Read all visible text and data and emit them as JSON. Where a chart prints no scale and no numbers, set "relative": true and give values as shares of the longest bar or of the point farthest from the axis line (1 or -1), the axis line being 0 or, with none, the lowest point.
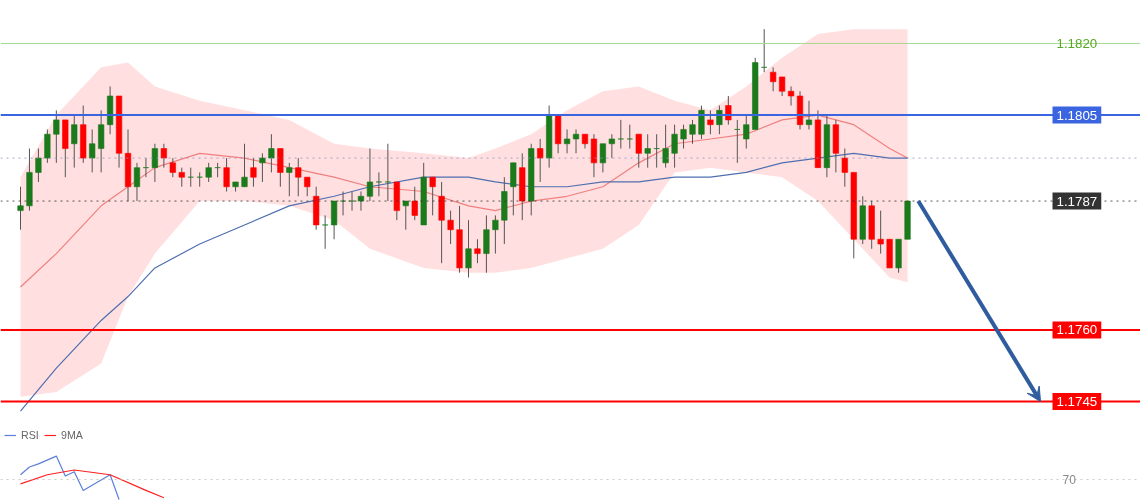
{
  "chart_data": [
    {
      "type": "candlestick",
      "tick_labels": "y",
      "grid": false,
      "yticks": [
        1.1745,
        {
          "value": 1.176,
          "label": "1.1760"
        },
        1.1787,
        1.1805,
        {
          "value": 1.182,
          "label": "1.1820"
        }
      ],
      "categories": [
        null,
        null,
        null,
        null,
        null,
        null,
        null,
        null,
        null,
        null,
        null,
        null,
        null,
        null,
        null,
        null,
        null,
        null,
        null,
        null,
        null,
        null,
        null,
        null,
        null,
        null,
        null,
        null,
        null,
        null,
        null,
        null,
        null,
        null,
        null,
        null,
        null,
        null,
        null,
        null,
        null,
        null,
        null,
        null,
        null,
        null,
        null,
        null,
        null,
        null,
        null,
        null,
        null,
        null,
        null,
        null,
        null,
        null,
        null,
        null,
        null,
        null,
        null,
        null,
        null,
        null,
        null,
        null,
        null,
        null,
        null,
        null,
        null,
        null,
        null,
        null,
        null,
        null,
        null,
        null,
        null,
        null,
        null,
        null,
        null,
        null,
        null,
        null,
        null,
        null,
        null,
        null,
        null,
        null,
        null,
        null,
        null,
        null,
        null,
        null
      ],
      "ylim": [
        1.174,
        1.1829
      ],
      "ohlc": [
        [
          1.1785,
          1.179,
          1.1781,
          1.1786
        ],
        [
          1.1786,
          1.1798,
          1.1785,
          1.1793
        ],
        [
          1.1793,
          1.1798,
          1.1791,
          1.1796
        ],
        [
          1.1796,
          1.1802,
          1.1795,
          1.1801
        ],
        [
          1.1801,
          1.1806,
          1.1795,
          1.1804
        ],
        [
          1.1804,
          1.1804,
          1.1792,
          1.1798
        ],
        [
          1.1799,
          1.1805,
          1.1794,
          1.1803
        ],
        [
          1.1803,
          1.1807,
          1.1795,
          1.1796
        ],
        [
          1.1796,
          1.1802,
          1.1793,
          1.1799
        ],
        [
          1.1798,
          1.1806,
          1.1793,
          1.1803
        ],
        [
          1.1803,
          1.1811,
          1.1801,
          1.1809
        ],
        [
          1.1809,
          1.1809,
          1.1794,
          1.1797
        ],
        [
          1.1797,
          1.1802,
          1.1787,
          1.179
        ],
        [
          1.179,
          1.1795,
          1.1787,
          1.1794
        ],
        [
          1.1794,
          1.1796,
          1.1792,
          1.1794
        ],
        [
          1.1794,
          1.1799,
          1.1791,
          1.1798
        ],
        [
          1.1798,
          1.1799,
          1.1794,
          1.1796
        ],
        [
          1.1795,
          1.1796,
          1.1792,
          1.1793
        ],
        [
          1.1793,
          1.1794,
          1.179,
          1.1792
        ],
        [
          1.1792,
          1.1794,
          1.179,
          1.1792
        ],
        [
          1.1792,
          1.1793,
          1.179,
          1.1792
        ],
        [
          1.1792,
          1.1795,
          1.1791,
          1.1794
        ],
        [
          1.1794,
          1.1795,
          1.1792,
          1.1794
        ],
        [
          1.1794,
          1.1796,
          1.1789,
          1.179
        ],
        [
          1.179,
          1.1791,
          1.1789,
          1.1791
        ],
        [
          1.179,
          1.1799,
          1.179,
          1.1792
        ],
        [
          1.1794,
          1.1796,
          1.179,
          1.1792
        ],
        [
          1.1795,
          1.1797,
          1.1791,
          1.1796
        ],
        [
          1.1796,
          1.1801,
          1.1793,
          1.1798
        ],
        [
          1.1798,
          1.1798,
          1.179,
          1.1793
        ],
        [
          1.1793,
          1.1795,
          1.1788,
          1.1794
        ],
        [
          1.1794,
          1.1796,
          1.1788,
          1.1792
        ],
        [
          1.1792,
          1.1792,
          1.1788,
          1.179
        ],
        [
          1.1788,
          1.179,
          1.1781,
          1.1782
        ],
        [
          1.1782,
          1.1784,
          1.1777,
          1.1782
        ],
        [
          1.1782,
          1.1787,
          1.1779,
          1.1787
        ],
        [
          1.1787,
          1.1789,
          1.1784,
          1.1787
        ],
        [
          1.1787,
          1.1789,
          1.1785,
          1.1787
        ],
        [
          1.1787,
          1.1789,
          1.1785,
          1.1788
        ],
        [
          1.1788,
          1.1798,
          1.1787,
          1.1791
        ],
        [
          1.1791,
          1.1793,
          1.1788,
          1.1791
        ],
        [
          1.1791,
          1.1799,
          1.1787,
          1.1791
        ],
        [
          1.1791,
          1.1791,
          1.1783,
          1.1785
        ],
        [
          1.1786,
          1.1787,
          1.1781,
          1.1787
        ],
        [
          1.1787,
          1.179,
          1.1783,
          1.1784
        ],
        [
          1.1782,
          1.1795,
          1.1782,
          1.1792
        ],
        [
          1.1792,
          1.1792,
          1.1784,
          1.179
        ],
        [
          1.1788,
          1.1791,
          1.1774,
          1.1783
        ],
        [
          1.1783,
          1.1785,
          1.1778,
          1.1781
        ],
        [
          1.1781,
          1.1786,
          1.1772,
          1.1773
        ],
        [
          1.1773,
          1.1783,
          1.1771,
          1.1777
        ],
        [
          1.1777,
          1.1779,
          1.1774,
          1.1776
        ],
        [
          1.1776,
          1.1784,
          1.1772,
          1.1781
        ],
        [
          1.1781,
          1.1784,
          1.1776,
          1.1783
        ],
        [
          1.1783,
          1.1792,
          1.1778,
          1.1789
        ],
        [
          1.179,
          1.1795,
          1.1784,
          1.1795
        ],
        [
          1.1794,
          1.1797,
          1.1783,
          1.1787
        ],
        [
          1.1787,
          1.1799,
          1.1784,
          1.1798
        ],
        [
          1.1798,
          1.18,
          1.1791,
          1.1796
        ],
        [
          1.1796,
          1.1807,
          1.1794,
          1.1805
        ],
        [
          1.1805,
          1.1805,
          1.1797,
          1.1799
        ],
        [
          1.1799,
          1.1802,
          1.1797,
          1.18
        ],
        [
          1.18,
          1.1802,
          1.1797,
          1.1801
        ],
        [
          1.1801,
          1.1801,
          1.1798,
          1.1799
        ],
        [
          1.18,
          1.1801,
          1.1792,
          1.1795
        ],
        [
          1.1795,
          1.1799,
          1.1793,
          1.1799
        ],
        [
          1.1799,
          1.1801,
          1.1796,
          1.18
        ],
        [
          1.18,
          1.1804,
          1.1798,
          1.18
        ],
        [
          1.18,
          1.1803,
          1.1798,
          1.18
        ],
        [
          1.1801,
          1.1801,
          1.1794,
          1.1797
        ],
        [
          1.1797,
          1.1801,
          1.1794,
          1.1798
        ],
        [
          1.1798,
          1.1801,
          1.1794,
          1.1798
        ],
        [
          1.1795,
          1.1803,
          1.1794,
          1.1798
        ],
        [
          1.1797,
          1.1803,
          1.1794,
          1.1801
        ],
        [
          1.18,
          1.1803,
          1.1798,
          1.1802
        ],
        [
          1.1801,
          1.1804,
          1.1799,
          1.1803
        ],
        [
          1.1801,
          1.1807,
          1.18,
          1.1806
        ],
        [
          1.1804,
          1.1806,
          1.1801,
          1.1803
        ],
        [
          1.1803,
          1.1807,
          1.1801,
          1.1806
        ],
        [
          1.1807,
          1.1809,
          1.1803,
          1.1804
        ],
        [
          1.1802,
          1.1804,
          1.1795,
          1.1802
        ],
        [
          1.18,
          1.1805,
          1.1798,
          1.1803
        ],
        [
          1.1802,
          1.1817,
          1.1802,
          1.1816
        ],
        [
          1.1815,
          1.1823,
          1.1814,
          1.1815
        ],
        [
          1.1814,
          1.1815,
          1.181,
          1.1812
        ],
        [
          1.1813,
          1.1813,
          1.1809,
          1.181
        ],
        [
          1.181,
          1.1811,
          1.1807,
          1.1809
        ],
        [
          1.1809,
          1.181,
          1.1802,
          1.1803
        ],
        [
          1.1803,
          1.1808,
          1.1802,
          1.1804
        ],
        [
          1.1804,
          1.1806,
          1.1794,
          1.1794
        ],
        [
          1.1794,
          1.1805,
          1.1792,
          1.1803
        ],
        [
          1.1803,
          1.1804,
          1.1793,
          1.1797
        ],
        [
          1.1796,
          1.1798,
          1.179,
          1.1793
        ],
        [
          1.1793,
          1.1793,
          1.1775,
          1.1779
        ],
        [
          1.1779,
          1.1788,
          1.1778,
          1.1786
        ],
        [
          1.1786,
          1.1787,
          1.1777,
          1.1779
        ],
        [
          1.1779,
          1.1785,
          1.1776,
          1.1778
        ],
        [
          1.1779,
          1.1779,
          1.1773,
          1.1773
        ],
        [
          1.1773,
          1.1779,
          1.1772,
          1.1779
        ],
        [
          1.1779,
          1.1787,
          1.1779,
          1.1787
        ]
      ],
      "colors": [
        "#1b7a1b",
        "#1b7a1b",
        "#1b7a1b",
        "#1b7a1b",
        "#1b7a1b",
        "#ff0000",
        "#1b7a1b",
        "#ff0000",
        "#1b7a1b",
        "#1b7a1b",
        "#1b7a1b",
        "#ff0000",
        "#ff0000",
        "#1b7a1b",
        "#1b7a1b",
        "#1b7a1b",
        "#ff0000",
        "#ff0000",
        "#ff0000",
        "#1b7a1b",
        "#1b7a1b",
        "#1b7a1b",
        "#1b7a1b",
        "#ff0000",
        "#1b7a1b",
        "#1b7a1b",
        "#ff0000",
        "#1b7a1b",
        "#1b7a1b",
        "#ff0000",
        "#1b7a1b",
        "#ff0000",
        "#ff0000",
        "#ff0000",
        "#1b7a1b",
        "#1b7a1b",
        "#1b7a1b",
        "#1b7a1b",
        "#1b7a1b",
        "#1b7a1b",
        "#1b7a1b",
        "#1b7a1b",
        "#ff0000",
        "#1b7a1b",
        "#ff0000",
        "#1b7a1b",
        "#ff0000",
        "#ff0000",
        "#ff0000",
        "#ff0000",
        "#1b7a1b",
        "#ff0000",
        "#1b7a1b",
        "#1b7a1b",
        "#1b7a1b",
        "#1b7a1b",
        "#ff0000",
        "#1b7a1b",
        "#ff0000",
        "#1b7a1b",
        "#ff0000",
        "#1b7a1b",
        "#1b7a1b",
        "#ff0000",
        "#ff0000",
        "#1b7a1b",
        "#1b7a1b",
        "#1b7a1b",
        "#1b7a1b",
        "#ff0000",
        "#1b7a1b",
        "#1b7a1b",
        "#1b7a1b",
        "#1b7a1b",
        "#1b7a1b",
        "#1b7a1b",
        "#1b7a1b",
        "#ff0000",
        "#1b7a1b",
        "#ff0000",
        "#1b7a1b",
        "#1b7a1b",
        "#1b7a1b",
        "#1b7a1b",
        "#ff0000",
        "#ff0000",
        "#ff0000",
        "#ff0000",
        "#1b7a1b",
        "#ff0000",
        "#1b7a1b",
        "#ff0000",
        "#ff0000",
        "#ff0000",
        "#1b7a1b",
        "#ff0000",
        "#ff0000",
        "#ff0000",
        "#1b7a1b",
        "#1b7a1b"
      ],
      "series": [
        {
          "type": "line",
          "color": "#f08080",
          "values": [
            1.1769,
            null,
            null,
            null,
            1.1776,
            null,
            null,
            null,
            null,
            1.1786,
            null,
            null,
            1.179,
            null,
            null,
            1.1794,
            null,
            null,
            null,
            null,
            1.1797,
            null,
            null,
            null,
            null,
            1.1796,
            null,
            null,
            null,
            null,
            1.1794,
            null,
            null,
            null,
            null,
            1.1792,
            null,
            null,
            null,
            1.179,
            null,
            null,
            null,
            null,
            null,
            1.1789,
            null,
            null,
            null,
            null,
            1.1786,
            null,
            null,
            1.1785,
            null,
            null,
            null,
            1.1787,
            null,
            null,
            null,
            1.1788,
            null,
            null,
            null,
            1.179,
            null,
            null,
            null,
            1.1795,
            null,
            null,
            null,
            1.1799,
            null,
            null,
            null,
            1.18,
            null,
            null,
            null,
            1.1801,
            null,
            null,
            null,
            1.1804,
            null,
            null,
            null,
            1.1805,
            null,
            null,
            null,
            1.1803,
            null,
            null,
            null,
            1.1798,
            null,
            1.1796
          ],
          "upper": [
            1.1792,
            null,
            null,
            null,
            1.1805,
            null,
            null,
            null,
            null,
            1.1815,
            null,
            null,
            1.1816,
            null,
            null,
            1.1811,
            null,
            null,
            null,
            null,
            1.1808,
            null,
            null,
            null,
            null,
            1.1806,
            null,
            null,
            null,
            null,
            1.1804,
            null,
            null,
            null,
            null,
            1.1799,
            null,
            null,
            null,
            1.1798,
            null,
            null,
            null,
            null,
            null,
            1.1797,
            null,
            null,
            null,
            null,
            1.1796,
            null,
            null,
            1.1798,
            null,
            null,
            null,
            1.1801,
            null,
            null,
            null,
            1.1806,
            null,
            null,
            null,
            1.181,
            null,
            null,
            null,
            1.1811,
            null,
            null,
            null,
            1.1808,
            null,
            null,
            null,
            1.1806,
            null,
            null,
            null,
            1.1811,
            null,
            null,
            null,
            1.1817,
            null,
            null,
            null,
            1.1822,
            null,
            null,
            null,
            1.1823,
            null,
            null,
            null,
            1.1823,
            null,
            1.1823
          ],
          "lower": [
            1.1746,
            null,
            null,
            null,
            1.1747,
            null,
            null,
            null,
            null,
            1.1753,
            null,
            null,
            1.1767,
            null,
            null,
            1.1776,
            null,
            null,
            null,
            null,
            1.1787,
            null,
            null,
            null,
            null,
            1.1787,
            null,
            null,
            null,
            null,
            1.1786,
            null,
            null,
            null,
            null,
            1.1783,
            null,
            null,
            null,
            1.1777,
            null,
            null,
            null,
            null,
            null,
            1.1773,
            null,
            null,
            null,
            null,
            1.1772,
            null,
            null,
            1.1772,
            null,
            null,
            null,
            1.1773,
            null,
            null,
            null,
            1.1775,
            null,
            null,
            null,
            1.1777,
            null,
            null,
            null,
            1.1782,
            null,
            null,
            null,
            1.1793,
            null,
            null,
            null,
            1.1794,
            null,
            null,
            null,
            1.1793,
            null,
            null,
            null,
            1.1792,
            null,
            null,
            null,
            1.1787,
            null,
            null,
            null,
            1.1779,
            null,
            null,
            null,
            1.1771,
            null,
            1.177
          ]
        },
        {
          "type": "line",
          "color": "#4f6fb0",
          "values": [
            1.1743,
            null,
            null,
            null,
            1.1752,
            null,
            null,
            null,
            null,
            1.1762,
            null,
            null,
            1.1767,
            null,
            null,
            1.1773,
            null,
            null,
            null,
            null,
            1.1778,
            null,
            null,
            null,
            null,
            1.1782,
            null,
            null,
            null,
            null,
            1.1786,
            null,
            null,
            null,
            null,
            1.1788,
            null,
            null,
            null,
            1.179,
            null,
            null,
            null,
            null,
            null,
            1.1792,
            null,
            null,
            null,
            null,
            1.1792,
            null,
            null,
            1.1791,
            null,
            null,
            null,
            1.179,
            null,
            null,
            null,
            1.179,
            null,
            null,
            null,
            1.1791,
            null,
            null,
            null,
            1.1791,
            null,
            null,
            null,
            1.1792,
            null,
            null,
            null,
            1.1792,
            null,
            null,
            null,
            1.1793,
            null,
            null,
            null,
            1.1795,
            null,
            null,
            null,
            1.1796,
            null,
            null,
            null,
            1.1797,
            null,
            null,
            null,
            1.1796,
            null,
            1.1796
          ]
        }
      ],
      "ref_lines": [
        {
          "axis": "y",
          "value": 1.182,
          "color": "#a8d890",
          "line_style": "solid"
        },
        {
          "axis": "y",
          "value": 1.1805,
          "color": "#3a64e0",
          "line_style": "solid"
        },
        {
          "axis": "y",
          "value": 1.1796,
          "color": "#8a96c8",
          "line_style": "dotted"
        },
        {
          "axis": "y",
          "value": 1.1787,
          "color": "#333333",
          "line_style": "dotted"
        },
        {
          "axis": "y",
          "value": 1.176,
          "color": "#ff0000",
          "line_style": "solid"
        },
        {
          "axis": "y",
          "value": 1.1745,
          "color": "#ff0000",
          "line_style": "solid"
        }
      ]
    },
    {
      "type": "line",
      "relative": true,
      "tick_labels": false,
      "legend": "top left",
      "categories": [
        null,
        null,
        null,
        null,
        null,
        null,
        null,
        null,
        null,
        null,
        null,
        null,
        null,
        null,
        null,
        null,
        null,
        null,
        null,
        null,
        null,
        null,
        null,
        null,
        null,
        null,
        null,
        null,
        null,
        null,
        null,
        null,
        null,
        null,
        null,
        null,
        null,
        null,
        null,
        null,
        null,
        null,
        null,
        null,
        null,
        null,
        null,
        null,
        null,
        null,
        null,
        null,
        null,
        null,
        null,
        null,
        null,
        null,
        null,
        null,
        null,
        null,
        null,
        null,
        null,
        null,
        null,
        null,
        null,
        null,
        null,
        null,
        null,
        null,
        null,
        null,
        null,
        null,
        null,
        null,
        null,
        null,
        null,
        null,
        null,
        null,
        null,
        null,
        null,
        null,
        null,
        null,
        null,
        null,
        null,
        null,
        null,
        null,
        null,
        null
      ],
      "series": [
        {
          "name": "RSI",
          "color": "#5b7fdc",
          "values": [
            0.57,
            0.75,
            0.82,
            null,
            1,
            0.54,
            0.64,
            0.21,
            null,
            null,
            0.57,
            0,
            null,
            null,
            null,
            null,
            null,
            null,
            null,
            null,
            null,
            null,
            null,
            null,
            null,
            null,
            null,
            null,
            null,
            null,
            null,
            null,
            null,
            null,
            null,
            null,
            null,
            null,
            null,
            null,
            null,
            null,
            null,
            null,
            null,
            null,
            null,
            null,
            null,
            null,
            null,
            null,
            null,
            null,
            null,
            null,
            null,
            null,
            null,
            null,
            null,
            null,
            null,
            null,
            null,
            null,
            null,
            null,
            null,
            null,
            null,
            null,
            null,
            null,
            null,
            null,
            null,
            null,
            null,
            null,
            null,
            null,
            null,
            null,
            null,
            null,
            null,
            null,
            null,
            null,
            null,
            null,
            null,
            null,
            null,
            null,
            null,
            null,
            null,
            null
          ]
        },
        {
          "name": "9MA",
          "color": "#ff2020",
          "values": [
            0.36,
            null,
            null,
            0.57,
            null,
            null,
            0.68,
            null,
            null,
            null,
            0.57,
            null,
            null,
            null,
            0.21,
            null,
            0.04,
            null,
            null,
            null,
            null,
            null,
            null,
            null,
            null,
            null,
            null,
            null,
            null,
            null,
            null,
            null,
            null,
            null,
            null,
            null,
            null,
            null,
            null,
            null,
            null,
            null,
            null,
            null,
            null,
            null,
            null,
            null,
            null,
            null,
            null,
            null,
            null,
            null,
            null,
            null,
            null,
            null,
            null,
            null,
            null,
            null,
            null,
            null,
            null,
            null,
            null,
            null,
            null,
            null,
            null,
            null,
            null,
            null,
            null,
            null,
            null,
            null,
            null,
            null,
            null,
            null,
            null,
            null,
            null,
            null,
            null,
            null,
            null,
            null,
            null,
            null,
            null,
            null,
            null,
            null,
            null,
            null,
            null,
            null
          ]
        }
      ],
      "ref_lines": [
        {
          "axis": "y",
          "value": 0.46,
          "color": "#bbbbbb",
          "line_style": "dotted"
        }
      ],
      "annotations": [
        "70"
      ]
    }
  ]
}
